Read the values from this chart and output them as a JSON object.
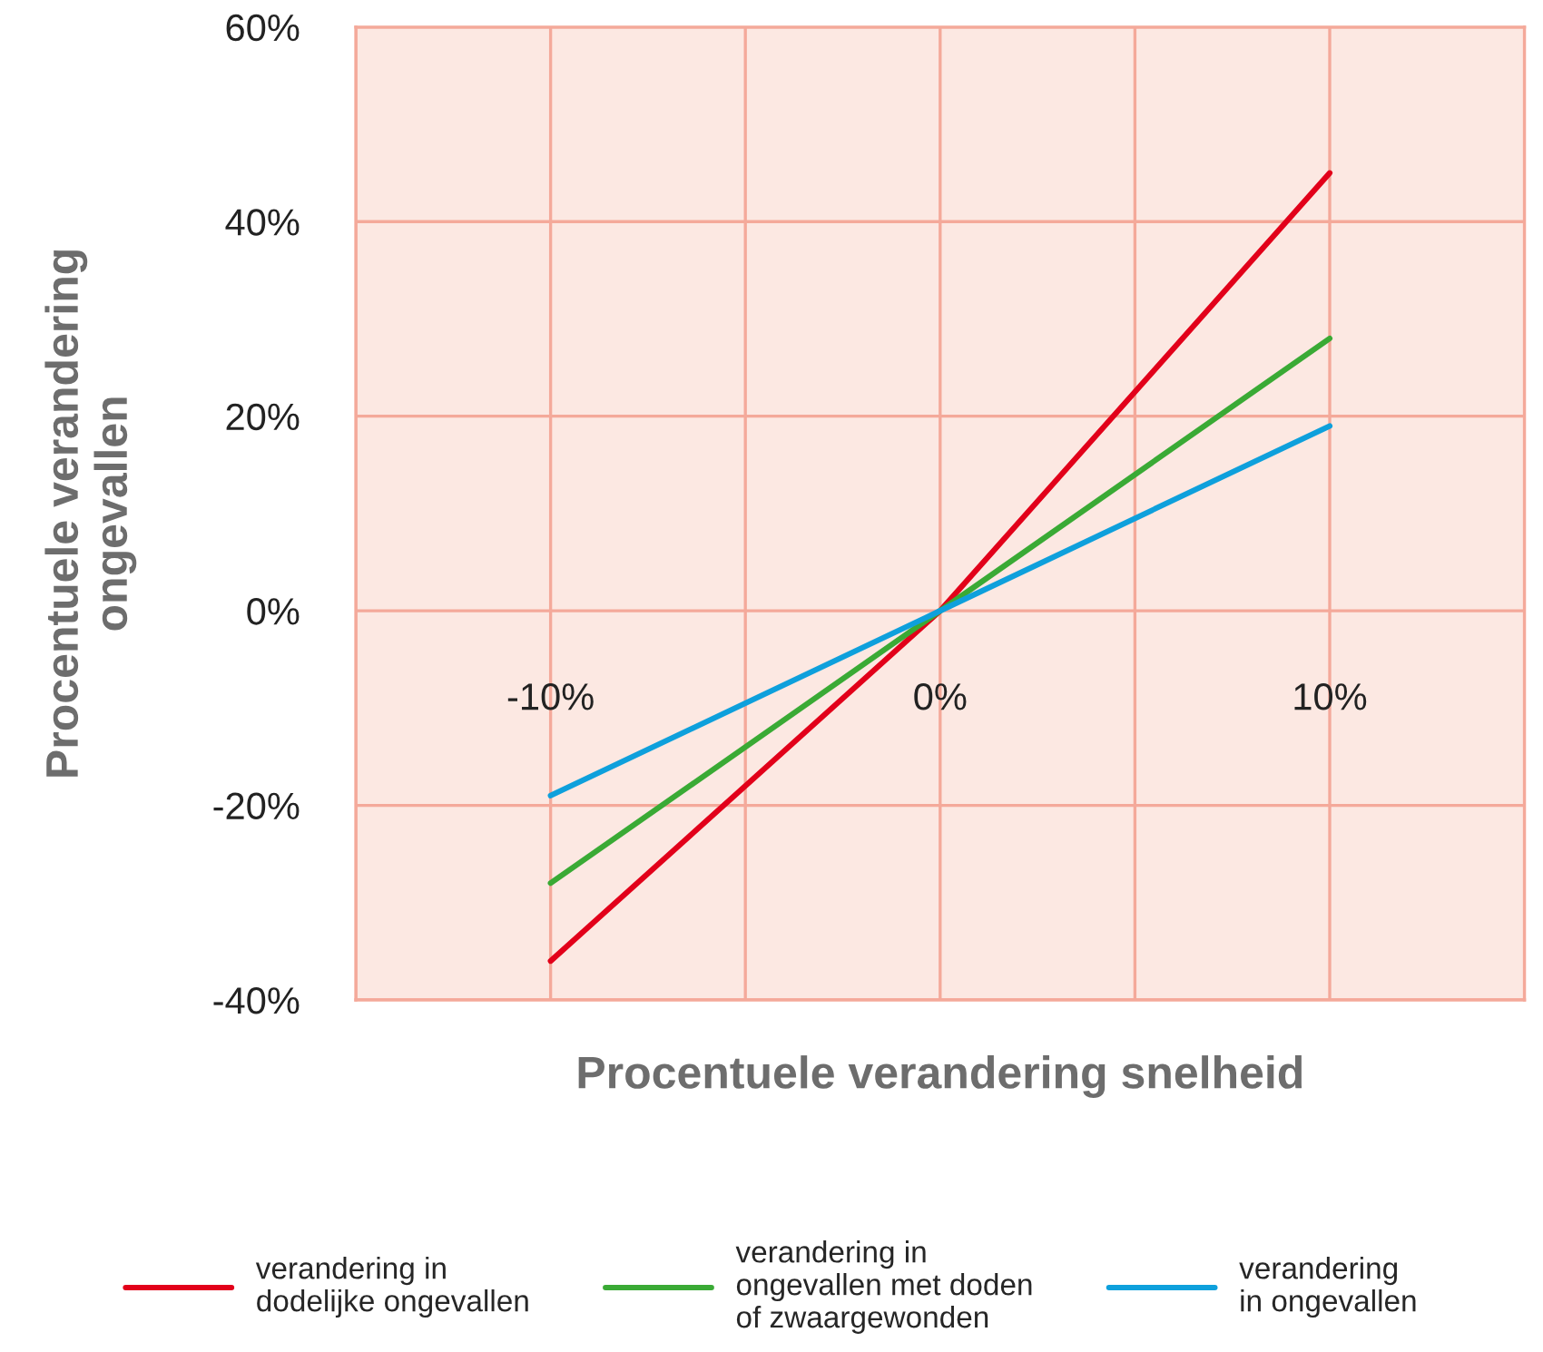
{
  "chart_data": {
    "type": "line",
    "xlabel": "Procentuele verandering snelheid",
    "ylabel": "Procentuele verandering\nongevallen",
    "x": [
      -10,
      0,
      10
    ],
    "series": [
      {
        "name": "verandering in\ndodelijke ongevallen",
        "color": "#e2001a",
        "values": [
          -36,
          0,
          45
        ]
      },
      {
        "name": "verandering in\nongevallen met doden\nof zwaargewonden",
        "color": "#3aaa35",
        "values": [
          -28,
          0,
          28
        ]
      },
      {
        "name": "verandering\nin ongevallen",
        "color": "#0ea0dc",
        "values": [
          -19,
          0,
          19
        ]
      }
    ],
    "xlim": [
      -15,
      15
    ],
    "xticks": [
      {
        "value": -15,
        "label": null
      },
      {
        "value": -10,
        "label": "-10%"
      },
      {
        "value": -5,
        "label": null
      },
      {
        "value": 0,
        "label": "0%"
      },
      {
        "value": 5,
        "label": null
      },
      {
        "value": 10,
        "label": "10%"
      },
      {
        "value": 15,
        "label": null
      }
    ],
    "ylim": [
      -40,
      60
    ],
    "yticks": [
      {
        "value": -40,
        "label": "-40%"
      },
      {
        "value": -20,
        "label": "-20%"
      },
      {
        "value": 0,
        "label": "0%"
      },
      {
        "value": 20,
        "label": "20%"
      },
      {
        "value": 40,
        "label": "40%"
      },
      {
        "value": 60,
        "label": "60%"
      }
    ],
    "grid": true,
    "legend": "bottom"
  }
}
